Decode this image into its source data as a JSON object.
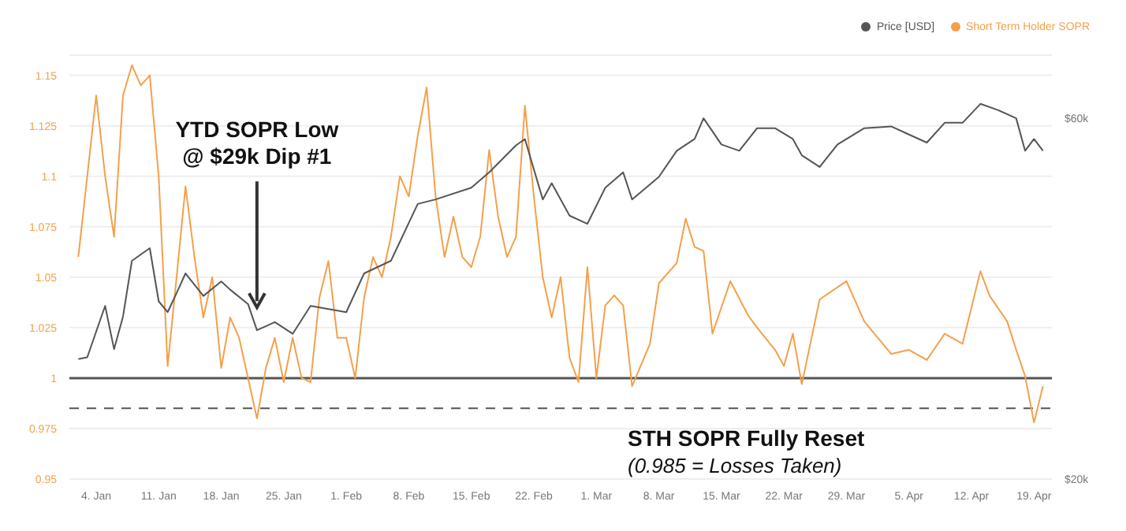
{
  "chart_data": {
    "type": "line",
    "xlim": [
      "--01-01",
      "--04-21"
    ],
    "xticks": [
      {
        "value": "--01-04",
        "label": "4. Jan"
      },
      {
        "value": "--01-11",
        "label": "11. Jan"
      },
      {
        "value": "--01-18",
        "label": "18. Jan"
      },
      {
        "value": "--01-25",
        "label": "25. Jan"
      },
      {
        "value": "--02-01",
        "label": "1. Feb"
      },
      {
        "value": "--02-08",
        "label": "8. Feb"
      },
      {
        "value": "--02-15",
        "label": "15. Feb"
      },
      {
        "value": "--02-22",
        "label": "22. Feb"
      },
      {
        "value": "--03-01",
        "label": "1. Mar"
      },
      {
        "value": "--03-08",
        "label": "8. Mar"
      },
      {
        "value": "--03-15",
        "label": "15. Mar"
      },
      {
        "value": "--03-22",
        "label": "22. Mar"
      },
      {
        "value": "--03-29",
        "label": "29. Mar"
      },
      {
        "value": "--04-05",
        "label": "5. Apr"
      },
      {
        "value": "--04-12",
        "label": "12. Apr"
      },
      {
        "value": "--04-19",
        "label": "19. Apr"
      }
    ],
    "ylim": [
      0.95,
      1.16
    ],
    "yticks": [
      0.95,
      0.975,
      1,
      1.025,
      1.05,
      1.075,
      1.1,
      1.125,
      1.15
    ],
    "y2lim": [
      20000,
      67000
    ],
    "y2ticks": [
      {
        "value": 20000,
        "label": "$20k"
      },
      {
        "value": 60000,
        "label": "$60k"
      }
    ],
    "grid": "y",
    "legend": "top right",
    "marker": "none",
    "series": [
      {
        "name": "Short Term Holder SOPR",
        "color": "#f4a04a",
        "x": [
          "--01-02",
          "--01-03",
          "--01-04",
          "--01-05",
          "--01-06",
          "--01-07",
          "--01-08",
          "--01-09",
          "--01-10",
          "--01-11",
          "--01-12",
          "--01-13",
          "--01-14",
          "--01-15",
          "--01-16",
          "--01-17",
          "--01-18",
          "--01-19",
          "--01-20",
          "--01-21",
          "--01-22",
          "--01-23",
          "--01-24",
          "--01-25",
          "--01-26",
          "--01-27",
          "--01-28",
          "--01-29",
          "--01-30",
          "--01-31",
          "--02-01",
          "--02-02",
          "--02-03",
          "--02-04",
          "--02-05",
          "--02-06",
          "--02-07",
          "--02-08",
          "--02-09",
          "--02-10",
          "--02-11",
          "--02-12",
          "--02-13",
          "--02-14",
          "--02-15",
          "--02-16",
          "--02-17",
          "--02-18",
          "--02-19",
          "--02-20",
          "--02-21",
          "--02-22",
          "--02-23",
          "--02-24",
          "--02-25",
          "--02-26",
          "--02-27",
          "--02-28",
          "--03-01",
          "--03-02",
          "--03-03",
          "--03-04",
          "--03-05",
          "--03-07",
          "--03-08",
          "--03-10",
          "--03-11",
          "--03-12",
          "--03-13",
          "--03-14",
          "--03-16",
          "--03-18",
          "--03-19",
          "--03-21",
          "--03-22",
          "--03-23",
          "--03-24",
          "--03-26",
          "--03-29",
          "--03-31",
          "--04-03",
          "--04-05",
          "--04-07",
          "--04-09",
          "--04-11",
          "--04-13",
          "--04-14",
          "--04-16",
          "--04-17",
          "--04-18",
          "--04-19",
          "--04-20"
        ],
        "values": [
          1.06,
          1.1,
          1.14,
          1.1,
          1.07,
          1.14,
          1.155,
          1.145,
          1.15,
          1.1,
          1.006,
          1.05,
          1.095,
          1.06,
          1.03,
          1.05,
          1.005,
          1.03,
          1.02,
          1.0,
          0.98,
          1.005,
          1.02,
          0.998,
          1.02,
          1.0,
          0.998,
          1.04,
          1.058,
          1.02,
          1.02,
          1.0,
          1.04,
          1.06,
          1.05,
          1.07,
          1.1,
          1.09,
          1.12,
          1.144,
          1.09,
          1.06,
          1.08,
          1.06,
          1.055,
          1.07,
          1.113,
          1.08,
          1.06,
          1.07,
          1.135,
          1.09,
          1.05,
          1.03,
          1.05,
          1.01,
          0.998,
          1.055,
          1.0,
          1.036,
          1.041,
          1.036,
          0.996,
          1.017,
          1.047,
          1.057,
          1.079,
          1.065,
          1.063,
          1.022,
          1.048,
          1.031,
          1.025,
          1.014,
          1.006,
          1.022,
          0.997,
          1.039,
          1.048,
          1.028,
          1.012,
          1.014,
          1.009,
          1.022,
          1.017,
          1.053,
          1.041,
          1.028,
          1.014,
          1.001,
          0.978,
          0.996
        ]
      },
      {
        "name": "Price [USD]",
        "color": "#555555",
        "axis": "y2",
        "x": [
          "--01-02",
          "--01-03",
          "--01-05",
          "--01-06",
          "--01-07",
          "--01-08",
          "--01-10",
          "--01-11",
          "--01-12",
          "--01-13",
          "--01-14",
          "--01-16",
          "--01-18",
          "--01-19",
          "--01-21",
          "--01-22",
          "--01-24",
          "--01-26",
          "--01-28",
          "--02-01",
          "--02-03",
          "--02-06",
          "--02-09",
          "--02-11",
          "--02-15",
          "--02-17",
          "--02-20",
          "--02-21",
          "--02-23",
          "--02-24",
          "--02-26",
          "--02-28",
          "--03-02",
          "--03-04",
          "--03-05",
          "--03-08",
          "--03-10",
          "--03-12",
          "--03-13",
          "--03-15",
          "--03-17",
          "--03-19",
          "--03-21",
          "--03-23",
          "--03-24",
          "--03-26",
          "--03-28",
          "--03-31",
          "--04-03",
          "--04-05",
          "--04-07",
          "--04-09",
          "--04-11",
          "--04-13",
          "--04-15",
          "--04-17",
          "--04-18",
          "--04-19",
          "--04-20"
        ],
        "values": [
          33300,
          33500,
          39200,
          34400,
          38000,
          44200,
          45600,
          39700,
          38500,
          40600,
          42800,
          40300,
          41900,
          41000,
          39400,
          36500,
          37400,
          36100,
          39200,
          38500,
          42800,
          44200,
          50500,
          51000,
          52300,
          54000,
          57000,
          57700,
          51000,
          52800,
          49200,
          48300,
          52300,
          54000,
          51000,
          53500,
          56400,
          57700,
          60000,
          57100,
          56400,
          58900,
          58900,
          57700,
          55900,
          54600,
          57100,
          58900,
          59100,
          58200,
          57300,
          59500,
          59500,
          61600,
          60900,
          60000,
          56400,
          57700,
          56400
        ]
      }
    ],
    "ref_lines": [
      {
        "axis": "y",
        "value": 1,
        "color": "#555555",
        "line_style": "solid"
      },
      {
        "axis": "y",
        "value": 0.985,
        "color": "#555555",
        "line_style": "dashed"
      }
    ],
    "annotations": [
      {
        "text": "YTD SOPR Low\n@ $29k Dip #1",
        "x": "--01-22",
        "y": 1.035
      },
      "STH SOPR Fully Reset",
      "(0.985 = Losses Taken)"
    ]
  }
}
